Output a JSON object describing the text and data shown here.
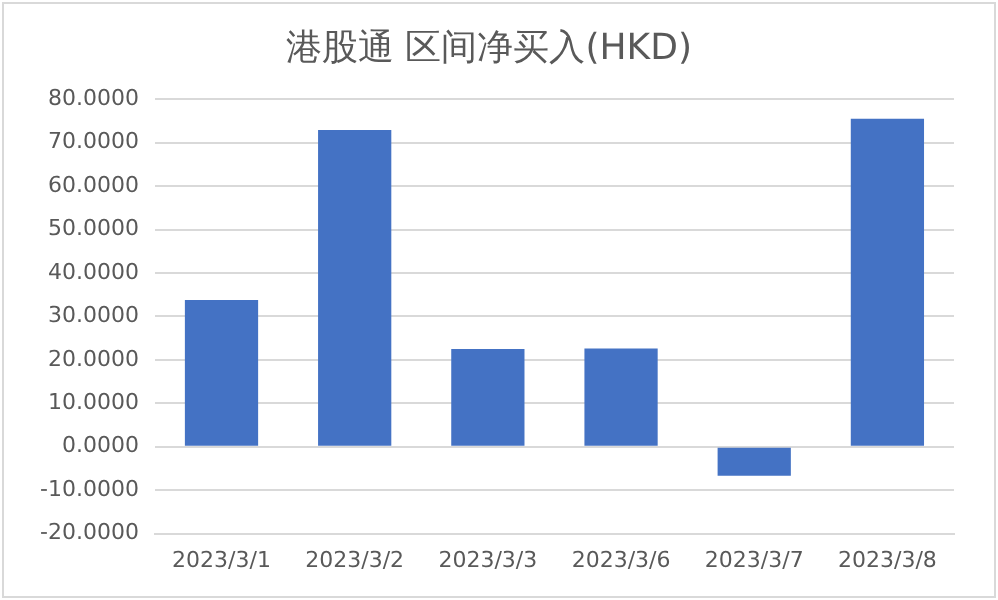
{
  "chart_data": {
    "type": "bar",
    "title": "港股通 区间净买入(HKD)",
    "categories": [
      "2023/3/1",
      "2023/3/2",
      "2023/3/3",
      "2023/3/6",
      "2023/3/7",
      "2023/3/8"
    ],
    "values": [
      33.8,
      72.9,
      22.5,
      22.6,
      -6.7,
      75.5
    ],
    "color": "#4472c4",
    "ylim": [
      -20,
      80
    ],
    "yticks": [
      {
        "value": -20,
        "label": "-20.0000"
      },
      {
        "value": -10,
        "label": "-10.0000"
      },
      {
        "value": 0,
        "label": "0.0000"
      },
      {
        "value": 10,
        "label": "10.0000"
      },
      {
        "value": 20,
        "label": "20.0000"
      },
      {
        "value": 30,
        "label": "30.0000"
      },
      {
        "value": 40,
        "label": "40.0000"
      },
      {
        "value": 50,
        "label": "50.0000"
      },
      {
        "value": 60,
        "label": "60.0000"
      },
      {
        "value": 70,
        "label": "70.0000"
      },
      {
        "value": 80,
        "label": "80.0000"
      }
    ],
    "grid": "y",
    "legend": false
  }
}
